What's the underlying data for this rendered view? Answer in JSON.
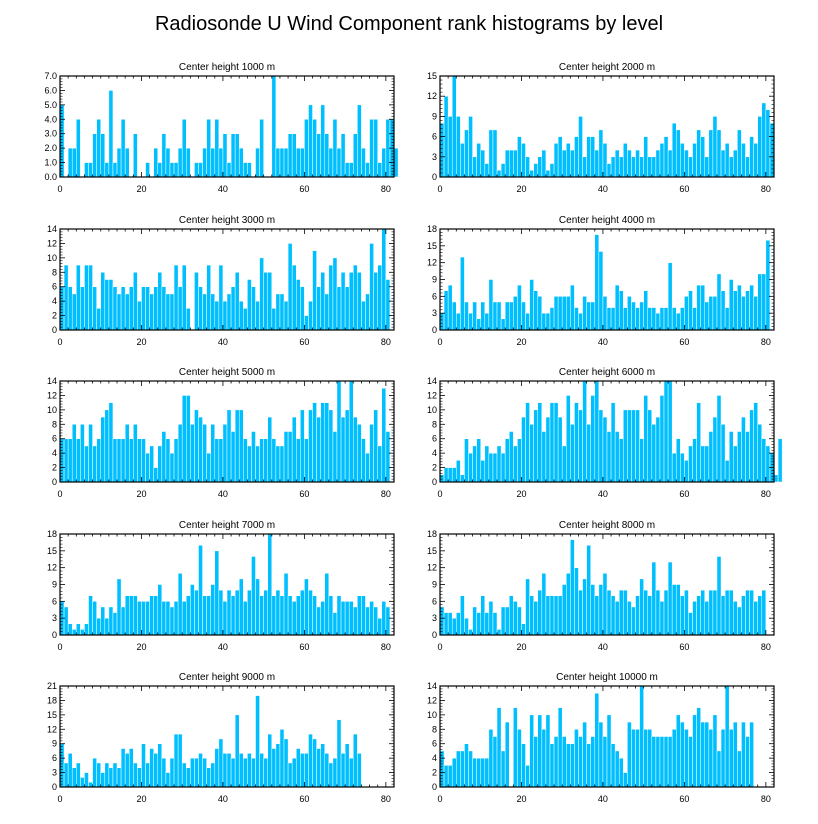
{
  "figure": {
    "title": "Radiosonde U Wind Component rank histograms by level",
    "bar_color": "#00bfff",
    "bar_edge_color": "#ffffff",
    "frame_color": "#000000"
  },
  "chart_data": [
    {
      "type": "bar",
      "title": "Center height 1000 m",
      "xlim": [
        0,
        82
      ],
      "ylim": [
        0,
        7
      ],
      "xticks": [
        0,
        20,
        40,
        60,
        80
      ],
      "yticks": [
        0,
        1,
        2,
        3,
        4,
        5,
        6,
        7
      ],
      "ytick_labels": [
        "0.0",
        "1.0",
        "2.0",
        "3.0",
        "4.0",
        "5.0",
        "6.0",
        "7.0"
      ],
      "values": [
        5,
        0,
        2,
        2,
        4,
        0,
        1,
        1,
        3,
        4,
        3,
        1,
        6,
        1,
        2,
        4,
        2,
        0,
        3,
        0,
        0,
        1,
        0,
        2,
        1,
        3,
        2,
        1,
        1,
        2,
        4,
        2,
        0,
        1,
        1,
        2,
        4,
        2,
        4,
        2,
        3,
        1,
        3,
        3,
        2,
        1,
        1,
        0,
        2,
        4,
        0,
        0,
        7,
        2,
        2,
        2,
        3,
        3,
        2,
        2,
        4,
        5,
        4,
        3,
        5,
        3,
        2,
        4,
        2,
        3,
        1,
        1,
        3,
        5,
        2,
        1,
        4,
        4,
        1,
        2,
        4,
        4,
        2
      ]
    },
    {
      "type": "bar",
      "title": "Center height 2000 m",
      "xlim": [
        0,
        82
      ],
      "ylim": [
        0,
        15
      ],
      "xticks": [
        0,
        20,
        40,
        60,
        80
      ],
      "yticks": [
        0,
        3,
        6,
        9,
        12,
        15
      ],
      "ytick_labels": [
        "0",
        "3",
        "6",
        "9",
        "12",
        "15"
      ],
      "values": [
        8,
        12,
        9,
        15,
        9,
        5,
        7,
        9,
        3,
        5,
        4,
        2,
        7,
        7,
        1,
        2,
        4,
        4,
        4,
        6,
        5,
        3,
        1,
        2,
        3,
        4,
        1,
        2,
        5,
        6,
        4,
        5,
        4,
        6,
        9,
        3,
        6,
        6,
        4,
        7,
        5,
        2,
        3,
        4,
        3,
        5,
        4,
        3,
        4,
        3,
        6,
        3,
        3,
        4,
        5,
        6,
        4,
        8,
        7,
        5,
        4,
        3,
        5,
        7,
        6,
        3,
        7,
        9,
        7,
        4,
        5,
        3,
        4,
        7,
        5,
        3,
        6,
        5,
        9,
        11,
        10,
        8
      ]
    },
    {
      "type": "bar",
      "title": "Center height 3000 m",
      "xlim": [
        0,
        82
      ],
      "ylim": [
        0,
        14
      ],
      "xticks": [
        0,
        20,
        40,
        60,
        80
      ],
      "yticks": [
        0,
        2,
        4,
        6,
        8,
        10,
        12,
        14
      ],
      "ytick_labels": [
        "0",
        "2",
        "4",
        "6",
        "8",
        "10",
        "12",
        "14"
      ],
      "values": [
        6,
        9,
        6,
        5,
        9,
        6,
        9,
        9,
        6,
        3,
        8,
        7,
        7,
        6,
        5,
        6,
        5,
        6,
        8,
        4,
        6,
        6,
        5,
        6,
        8,
        6,
        5,
        5,
        9,
        6,
        9,
        3,
        0,
        8,
        6,
        5,
        9,
        5,
        4,
        9,
        4,
        5,
        6,
        8,
        4,
        3,
        7,
        6,
        4,
        10,
        8,
        8,
        3,
        5,
        5,
        4,
        12,
        9,
        7,
        6,
        2,
        4,
        11,
        6,
        8,
        5,
        9,
        10,
        6,
        8,
        6,
        8,
        9,
        8,
        4,
        5,
        12,
        8,
        9,
        14,
        7
      ]
    },
    {
      "type": "bar",
      "title": "Center height 4000 m",
      "xlim": [
        0,
        82
      ],
      "ylim": [
        0,
        18
      ],
      "xticks": [
        0,
        20,
        40,
        60,
        80
      ],
      "yticks": [
        0,
        3,
        6,
        9,
        12,
        15,
        18
      ],
      "ytick_labels": [
        "0",
        "3",
        "6",
        "9",
        "12",
        "15",
        "18"
      ],
      "values": [
        3,
        7,
        8,
        5,
        3,
        13,
        5,
        3,
        5,
        2,
        5,
        3,
        9,
        5,
        5,
        2,
        5,
        5,
        6,
        8,
        5,
        3,
        9,
        7,
        6,
        3,
        3,
        4,
        6,
        6,
        6,
        6,
        8,
        4,
        3,
        6,
        5,
        5,
        17,
        14,
        6,
        4,
        4,
        8,
        7,
        4,
        6,
        5,
        4,
        5,
        7,
        4,
        4,
        3,
        4,
        4,
        12,
        4,
        3,
        4,
        6,
        7,
        4,
        8,
        8,
        5,
        6,
        6,
        10,
        7,
        4,
        9,
        7,
        8,
        6,
        7,
        8,
        6,
        10,
        10,
        16
      ]
    },
    {
      "type": "bar",
      "title": "Center height 5000 m",
      "xlim": [
        0,
        82
      ],
      "ylim": [
        0,
        14
      ],
      "xticks": [
        0,
        20,
        40,
        60,
        80
      ],
      "yticks": [
        0,
        2,
        4,
        6,
        8,
        10,
        12,
        14
      ],
      "ytick_labels": [
        "0",
        "2",
        "4",
        "6",
        "8",
        "10",
        "12",
        "14"
      ],
      "values": [
        6,
        6,
        6,
        8,
        6,
        8,
        5,
        8,
        5,
        6,
        9,
        10,
        11,
        6,
        6,
        6,
        8,
        6,
        8,
        6,
        6,
        4,
        5,
        2,
        5,
        7,
        6,
        4,
        6,
        8,
        12,
        12,
        8,
        10,
        9,
        8,
        4,
        8,
        6,
        6,
        8,
        10,
        7,
        10,
        10,
        6,
        5,
        7,
        5,
        6,
        6,
        9,
        6,
        5,
        5,
        7,
        7,
        9,
        6,
        10,
        6,
        10,
        11,
        9,
        11,
        11,
        10,
        7,
        14,
        9,
        10,
        14,
        9,
        8,
        6,
        4,
        8,
        10,
        5,
        13,
        7
      ]
    },
    {
      "type": "bar",
      "title": "Center height 6000 m",
      "xlim": [
        0,
        82
      ],
      "ylim": [
        0,
        14
      ],
      "xticks": [
        0,
        20,
        40,
        60,
        80
      ],
      "yticks": [
        0,
        2,
        4,
        6,
        8,
        10,
        12,
        14
      ],
      "ytick_labels": [
        "0",
        "2",
        "4",
        "6",
        "8",
        "10",
        "12",
        "14"
      ],
      "values": [
        1,
        2,
        2,
        2,
        3,
        1,
        6,
        4,
        5,
        6,
        3,
        5,
        4,
        4,
        5,
        4,
        6,
        7,
        5,
        6,
        9,
        11,
        8,
        10,
        11,
        7,
        9,
        11,
        11,
        9,
        5,
        12,
        8,
        11,
        10,
        14,
        8,
        12,
        14,
        10,
        9,
        7,
        11,
        7,
        6,
        10,
        10,
        10,
        10,
        6,
        12,
        10,
        8,
        9,
        12,
        14,
        14,
        4,
        6,
        4,
        3,
        5,
        6,
        11,
        5,
        5,
        7,
        9,
        12,
        8,
        3,
        7,
        5,
        7,
        9,
        7,
        10,
        11,
        8,
        6,
        5,
        4,
        1,
        6
      ]
    },
    {
      "type": "bar",
      "title": "Center height 7000 m",
      "xlim": [
        0,
        82
      ],
      "ylim": [
        0,
        18
      ],
      "xticks": [
        0,
        20,
        40,
        60,
        80
      ],
      "yticks": [
        0,
        3,
        6,
        9,
        12,
        15,
        18
      ],
      "ytick_labels": [
        "0",
        "3",
        "6",
        "9",
        "12",
        "15",
        "18"
      ],
      "values": [
        6,
        5,
        2,
        1,
        2,
        1,
        2,
        7,
        6,
        3,
        5,
        3,
        5,
        4,
        10,
        5,
        7,
        7,
        7,
        6,
        6,
        6,
        7,
        7,
        9,
        6,
        6,
        5,
        6,
        11,
        6,
        7,
        9,
        8,
        16,
        7,
        7,
        9,
        15,
        8,
        6,
        8,
        7,
        8,
        10,
        6,
        8,
        14,
        10,
        7,
        8,
        18,
        7,
        8,
        7,
        11,
        7,
        6,
        7,
        8,
        10,
        8,
        7,
        5,
        6,
        11,
        7,
        4,
        7,
        6,
        6,
        6,
        5,
        7,
        7,
        5,
        6,
        5,
        3,
        6,
        5
      ]
    },
    {
      "type": "bar",
      "title": "Center height 8000 m",
      "xlim": [
        0,
        82
      ],
      "ylim": [
        0,
        18
      ],
      "xticks": [
        0,
        20,
        40,
        60,
        80
      ],
      "yticks": [
        0,
        3,
        6,
        9,
        12,
        15,
        18
      ],
      "ytick_labels": [
        "0",
        "3",
        "6",
        "9",
        "12",
        "15",
        "18"
      ],
      "values": [
        5,
        4,
        4,
        3,
        4,
        7,
        3,
        1,
        5,
        4,
        7,
        4,
        6,
        4,
        1,
        5,
        5,
        7,
        6,
        5,
        2,
        10,
        7,
        6,
        8,
        11,
        7,
        7,
        7,
        7,
        9,
        11,
        17,
        12,
        8,
        10,
        16,
        9,
        7,
        9,
        11,
        8,
        7,
        6,
        8,
        8,
        6,
        5,
        7,
        10,
        8,
        7,
        13,
        8,
        6,
        8,
        13,
        9,
        9,
        7,
        8,
        4,
        6,
        7,
        8,
        6,
        8,
        8,
        14,
        7,
        8,
        8,
        6,
        5,
        7,
        8,
        8,
        6,
        7,
        8
      ]
    },
    {
      "type": "bar",
      "title": "Center height 9000 m",
      "xlim": [
        0,
        82
      ],
      "ylim": [
        0,
        21
      ],
      "xticks": [
        0,
        20,
        40,
        60,
        80
      ],
      "yticks": [
        0,
        3,
        6,
        9,
        12,
        15,
        18,
        21
      ],
      "ytick_labels": [
        "0",
        "3",
        "6",
        "9",
        "12",
        "15",
        "18",
        "21"
      ],
      "values": [
        9,
        5,
        7,
        4,
        5,
        2,
        3,
        1,
        6,
        5,
        3,
        5,
        4,
        5,
        4,
        8,
        7,
        8,
        5,
        4,
        9,
        5,
        8,
        7,
        9,
        6,
        3,
        6,
        11,
        11,
        5,
        4,
        6,
        6,
        7,
        6,
        4,
        5,
        8,
        10,
        7,
        7,
        6,
        15,
        7,
        6,
        7,
        6,
        19,
        7,
        6,
        11,
        8,
        9,
        12,
        10,
        5,
        6,
        8,
        7,
        7,
        11,
        10,
        8,
        9,
        7,
        5,
        6,
        14,
        7,
        9,
        6,
        11,
        7
      ]
    },
    {
      "type": "bar",
      "title": "Center height 10000 m",
      "xlim": [
        0,
        82
      ],
      "ylim": [
        0,
        14
      ],
      "xticks": [
        0,
        20,
        40,
        60,
        80
      ],
      "yticks": [
        0,
        2,
        4,
        6,
        8,
        10,
        12,
        14
      ],
      "ytick_labels": [
        "0",
        "2",
        "4",
        "6",
        "8",
        "10",
        "12",
        "14"
      ],
      "values": [
        5,
        3,
        3,
        4,
        5,
        5,
        6,
        5,
        4,
        4,
        4,
        4,
        8,
        7,
        11,
        5,
        9,
        0,
        11,
        8,
        6,
        3,
        10,
        7,
        10,
        8,
        10,
        6,
        7,
        11,
        7,
        6,
        6,
        8,
        7,
        9,
        6,
        7,
        13,
        9,
        7,
        10,
        6,
        5,
        4,
        2,
        9,
        8,
        8,
        14,
        8,
        8,
        7,
        7,
        7,
        7,
        7,
        8,
        10,
        9,
        8,
        7,
        10,
        11,
        9,
        9,
        8,
        10,
        5,
        8,
        14,
        8,
        9,
        5,
        9,
        7,
        9
      ]
    }
  ]
}
